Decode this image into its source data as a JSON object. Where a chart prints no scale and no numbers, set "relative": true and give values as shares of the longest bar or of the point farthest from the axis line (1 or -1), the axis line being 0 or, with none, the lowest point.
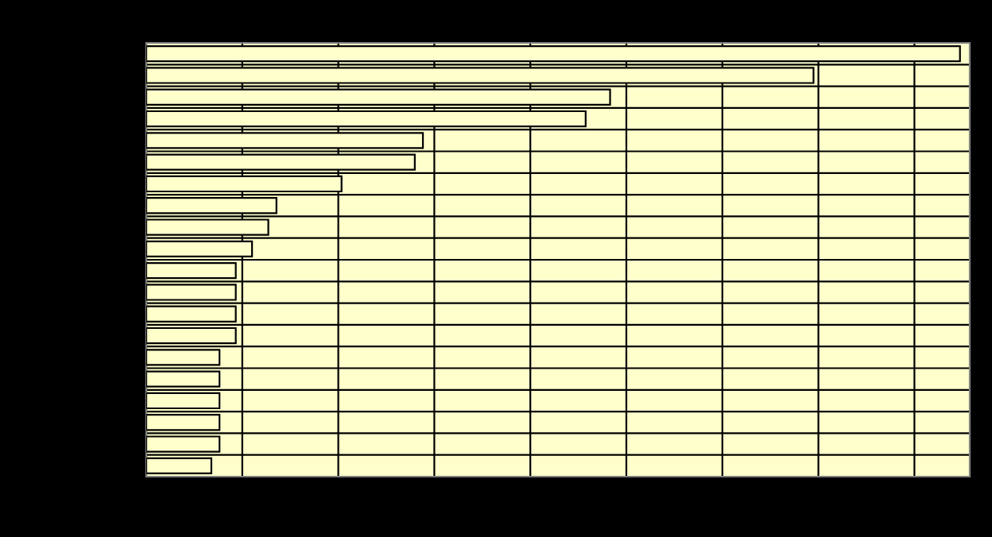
{
  "chart_data": {
    "type": "bar",
    "orientation": "horizontal",
    "relative": true,
    "grid": true,
    "categories": [
      null,
      null,
      null,
      null,
      null,
      null,
      null,
      null,
      null,
      null,
      null,
      null,
      null,
      null,
      null,
      null,
      null,
      null,
      null,
      null
    ],
    "series": [
      {
        "color": "#ffffcc",
        "values": [
          1,
          0.82,
          0.57,
          0.54,
          0.34,
          0.33,
          0.24,
          0.16,
          0.15,
          0.13,
          0.11,
          0.11,
          0.11,
          0.11,
          0.09,
          0.09,
          0.09,
          0.09,
          0.09,
          0.08
        ]
      }
    ]
  }
}
